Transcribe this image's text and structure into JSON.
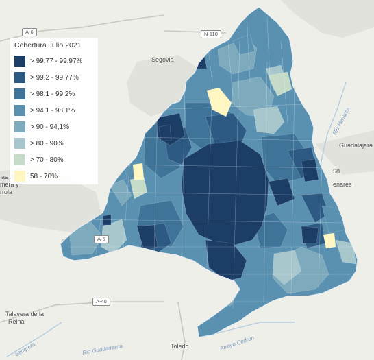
{
  "legend": {
    "title": "Cobertura Julio 2021",
    "classes": [
      {
        "label": "> 99,77 - 99,97%",
        "color": "#1c3d66"
      },
      {
        "label": "> 99,2 - 99,77%",
        "color": "#2c5a83"
      },
      {
        "label": "> 98,1 - 99,2%",
        "color": "#3f7398"
      },
      {
        "label": "> 94,1 - 98,1%",
        "color": "#5a90b0"
      },
      {
        "label": "> 90 - 94,1%",
        "color": "#7eaabd"
      },
      {
        "label": "> 80 - 90%",
        "color": "#a7c7cc"
      },
      {
        "label": "> 70 - 80%",
        "color": "#c5dbc8"
      },
      {
        "label": "58 - 70%",
        "color": "#fff6c2"
      }
    ]
  },
  "places": [
    {
      "key": "segovia",
      "label": "Segovia"
    },
    {
      "key": "guadalajara",
      "label": "Guadalajara"
    },
    {
      "key": "talavera1",
      "label": "Talavera de la"
    },
    {
      "key": "talavera2",
      "label": "Reina"
    },
    {
      "key": "toledo",
      "label": "Toledo"
    },
    {
      "key": "henares",
      "label": "enares"
    },
    {
      "key": "place_58",
      "label": "58"
    },
    {
      "key": "mera",
      "label": "mera y"
    },
    {
      "key": "rrola",
      "label": "rrola"
    },
    {
      "key": "as_de",
      "label": "as de"
    }
  ],
  "roads": [
    {
      "key": "a6",
      "label": "A-6"
    },
    {
      "key": "n110",
      "label": "N-110"
    },
    {
      "key": "a40",
      "label": "A-40"
    },
    {
      "key": "a5",
      "label": "A-5"
    }
  ],
  "rivers": [
    {
      "key": "henares_river",
      "label": "Rio Henares"
    },
    {
      "key": "guadarrama",
      "label": "Rio Guadarrama"
    },
    {
      "key": "cedron",
      "label": "Arroyo Cedron"
    },
    {
      "key": "sangrera",
      "label": "Sangrera"
    }
  ]
}
